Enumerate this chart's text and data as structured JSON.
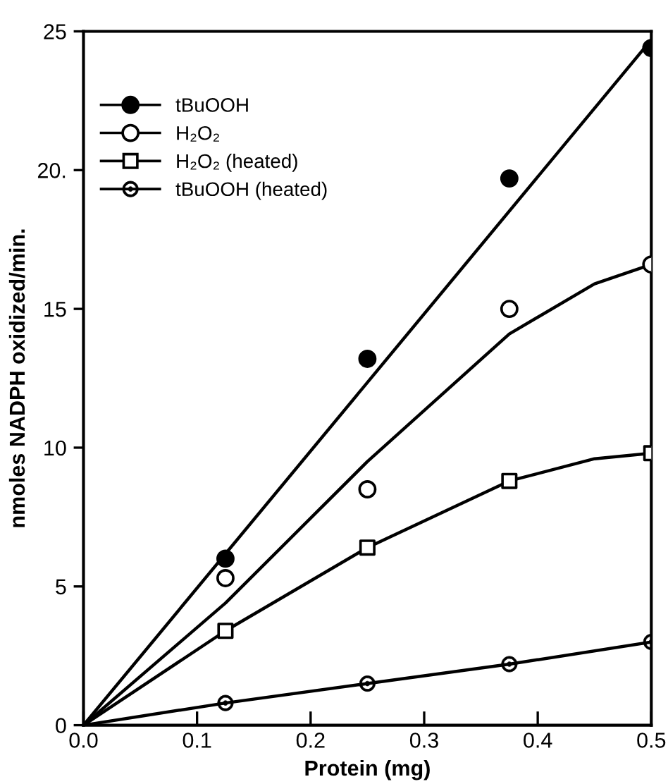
{
  "chart_data": {
    "type": "scatter",
    "xlabel": "Protein (mg)",
    "ylabel": "nmoles NADPH oxidized/min.",
    "xlim": [
      0,
      0.5
    ],
    "ylim": [
      0,
      25
    ],
    "xticks": [
      {
        "value": 0,
        "label": "0.0"
      },
      0.1,
      0.2,
      0.3,
      0.4,
      0.5
    ],
    "yticks": [
      0,
      5,
      10,
      15,
      {
        "value": 20,
        "label": "20."
      },
      25
    ],
    "grid": false,
    "legend": "top left",
    "series": [
      {
        "name": "tBuOOH",
        "color": "#000000",
        "marker": "circle",
        "x": [
          0.125,
          0.25,
          0.375,
          0.5
        ],
        "values": [
          6.0,
          13.2,
          19.7,
          24.4
        ]
      },
      {
        "name": "H₂O₂",
        "color": "#000000",
        "marker": "circle",
        "x": [
          0.125,
          0.25,
          0.375,
          0.5
        ],
        "values": [
          5.3,
          8.5,
          15.0,
          16.6
        ]
      },
      {
        "name": "H₂O₂ (heated)",
        "color": "#000000",
        "marker": "square",
        "x": [
          0.125,
          0.25,
          0.375,
          0.5
        ],
        "values": [
          3.4,
          6.4,
          8.8,
          9.8
        ]
      },
      {
        "name": "tBuOOH (heated)",
        "color": "#000000",
        "marker": "circle",
        "x": [
          0.125,
          0.25,
          0.375,
          0.5
        ],
        "values": [
          0.8,
          1.5,
          2.2,
          3.0
        ]
      },
      {
        "type": "line",
        "color": "#000000",
        "line_style": "solid",
        "x": [
          0,
          0.5
        ],
        "values": [
          0,
          24.7
        ]
      },
      {
        "type": "line",
        "color": "#000000",
        "line_style": "solid",
        "x": [
          0,
          0.125,
          0.25,
          0.375,
          0.45,
          0.5
        ],
        "values": [
          0,
          4.4,
          9.5,
          14.1,
          15.9,
          16.6
        ]
      },
      {
        "type": "line",
        "color": "#000000",
        "line_style": "solid",
        "x": [
          0,
          0.125,
          0.25,
          0.375,
          0.45,
          0.5
        ],
        "values": [
          0,
          3.4,
          6.4,
          8.8,
          9.6,
          9.8
        ]
      },
      {
        "type": "line",
        "color": "#000000",
        "line_style": "solid",
        "x": [
          0,
          0.125,
          0.25,
          0.375,
          0.5
        ],
        "values": [
          0,
          0.8,
          1.5,
          2.2,
          3.0
        ]
      }
    ]
  }
}
